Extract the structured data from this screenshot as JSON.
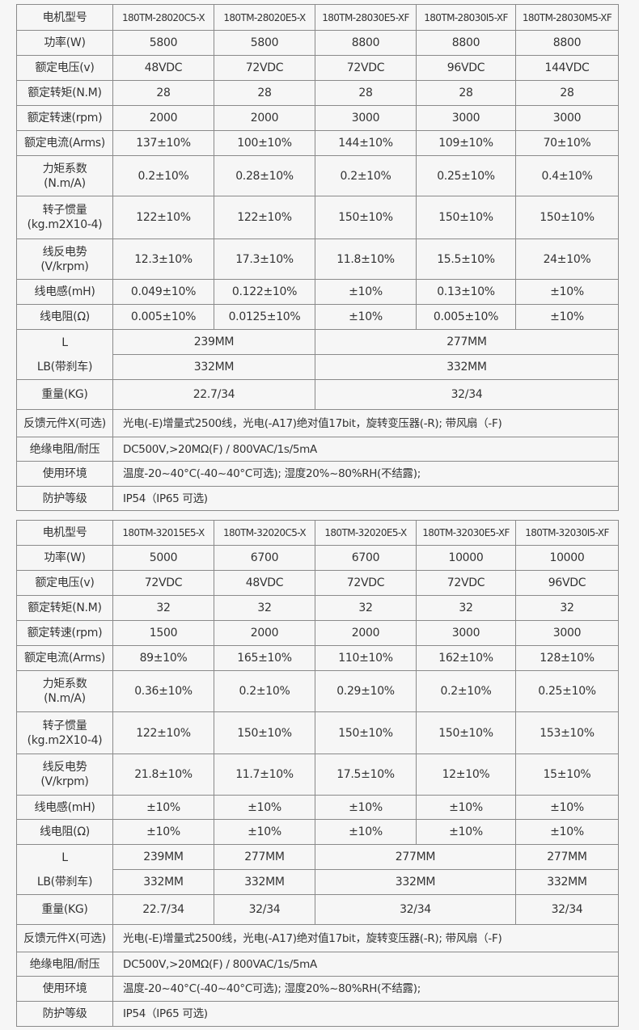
{
  "tables": [
    {
      "rows": [
        {
          "label": [
            "电机型号"
          ],
          "model": true,
          "cells": [
            {
              "text": "180TM-28020C5-X"
            },
            {
              "text": "180TM-28020E5-X"
            },
            {
              "text": "180TM-28030E5-XF"
            },
            {
              "text": "180TM-28030I5-XF"
            },
            {
              "text": "180TM-28030M5-XF"
            }
          ]
        },
        {
          "label": [
            "功率(W)"
          ],
          "cells": [
            {
              "text": "5800"
            },
            {
              "text": "5800"
            },
            {
              "text": "8800"
            },
            {
              "text": "8800"
            },
            {
              "text": "8800"
            }
          ]
        },
        {
          "label": [
            "额定电压(v)"
          ],
          "cells": [
            {
              "text": "48VDC"
            },
            {
              "text": "72VDC"
            },
            {
              "text": "72VDC"
            },
            {
              "text": "96VDC"
            },
            {
              "text": "144VDC"
            }
          ]
        },
        {
          "label": [
            "额定转矩(N.M)"
          ],
          "cells": [
            {
              "text": "28"
            },
            {
              "text": "28"
            },
            {
              "text": "28"
            },
            {
              "text": "28"
            },
            {
              "text": "28"
            }
          ]
        },
        {
          "label": [
            "额定转速(rpm)"
          ],
          "cells": [
            {
              "text": "2000"
            },
            {
              "text": "2000"
            },
            {
              "text": "3000"
            },
            {
              "text": "3000"
            },
            {
              "text": "3000"
            }
          ]
        },
        {
          "label": [
            "额定电流(Arms)"
          ],
          "cells": [
            {
              "text": "137±10%"
            },
            {
              "text": "100±10%"
            },
            {
              "text": "144±10%"
            },
            {
              "text": "109±10%"
            },
            {
              "text": "70±10%"
            }
          ]
        },
        {
          "label": [
            "力矩系数",
            "(N.m/A)"
          ],
          "cells": [
            {
              "text": "0.2±10%"
            },
            {
              "text": "0.28±10%"
            },
            {
              "text": "0.2±10%"
            },
            {
              "text": "0.25±10%"
            },
            {
              "text": "0.4±10%"
            }
          ]
        },
        {
          "label": [
            "转子惯量",
            "(kg.m2X10-4)"
          ],
          "cells": [
            {
              "text": "122±10%"
            },
            {
              "text": "122±10%"
            },
            {
              "text": "150±10%"
            },
            {
              "text": "150±10%"
            },
            {
              "text": "150±10%"
            }
          ]
        },
        {
          "label": [
            "线反电势",
            "(V/krpm)"
          ],
          "cells": [
            {
              "text": "12.3±10%"
            },
            {
              "text": "17.3±10%"
            },
            {
              "text": "11.8±10%"
            },
            {
              "text": "15.5±10%"
            },
            {
              "text": "24±10%"
            }
          ]
        },
        {
          "label": [
            "线电感(mH)"
          ],
          "cells": [
            {
              "text": "0.049±10%"
            },
            {
              "text": "0.122±10%"
            },
            {
              "text": "±10%"
            },
            {
              "text": "0.13±10%"
            },
            {
              "text": "±10%"
            }
          ]
        },
        {
          "label": [
            "线电阻(Ω)"
          ],
          "cells": [
            {
              "text": "0.005±10%"
            },
            {
              "text": "0.0125±10%"
            },
            {
              "text": "±10%"
            },
            {
              "text": "0.005±10%"
            },
            {
              "text": "±10%"
            }
          ]
        },
        {
          "label": [
            "L",
            "LB(带刹车)"
          ],
          "label_rowspan": 2,
          "cells": [
            {
              "text": "239MM",
              "span": 2
            },
            {
              "text": "277MM",
              "span": 3
            }
          ]
        },
        {
          "label": null,
          "cells": [
            {
              "text": "332MM",
              "span": 2
            },
            {
              "text": "332MM",
              "span": 3
            }
          ]
        },
        {
          "label": [
            "重量(KG)"
          ],
          "cells": [
            {
              "text": "22.7/34",
              "span": 2
            },
            {
              "text": "32/34",
              "span": 3
            }
          ]
        },
        {
          "label": [
            "反馈元件X(可选)"
          ],
          "cells": [
            {
              "text": "光电(-E)增量式2500线，光电(-A17)绝对值17bit，旋转变压器(-R); 带风扇（-F)",
              "span": 5,
              "long": true
            }
          ]
        },
        {
          "label": [
            "绝缘电阻/耐压"
          ],
          "cells": [
            {
              "text": "DC500V,>20MΩ(F) / 800VAC/1s/5mA",
              "span": 5,
              "long": true
            }
          ]
        },
        {
          "label": [
            "使用环境"
          ],
          "cells": [
            {
              "text": "温度-20~40°C(-40~40°C可选); 湿度20%~80%RH(不结露);",
              "span": 5,
              "long": true
            }
          ]
        },
        {
          "label": [
            "防护等级"
          ],
          "cells": [
            {
              "text": "IP54（IP65 可选)",
              "span": 5,
              "long": true
            }
          ]
        }
      ]
    },
    {
      "rows": [
        {
          "label": [
            "电机型号"
          ],
          "model": true,
          "cells": [
            {
              "text": "180TM-32015E5-X"
            },
            {
              "text": "180TM-32020C5-X"
            },
            {
              "text": "180TM-32020E5-X"
            },
            {
              "text": "180TM-32030E5-XF"
            },
            {
              "text": "180TM-32030I5-XF"
            }
          ]
        },
        {
          "label": [
            "功率(W)"
          ],
          "cells": [
            {
              "text": "5000"
            },
            {
              "text": "6700"
            },
            {
              "text": "6700"
            },
            {
              "text": "10000"
            },
            {
              "text": "10000"
            }
          ]
        },
        {
          "label": [
            "额定电压(v)"
          ],
          "cells": [
            {
              "text": "72VDC"
            },
            {
              "text": "48VDC"
            },
            {
              "text": "72VDC"
            },
            {
              "text": "72VDC"
            },
            {
              "text": "96VDC"
            }
          ]
        },
        {
          "label": [
            "额定转矩(N.M)"
          ],
          "cells": [
            {
              "text": "32"
            },
            {
              "text": "32"
            },
            {
              "text": "32"
            },
            {
              "text": "32"
            },
            {
              "text": "32"
            }
          ]
        },
        {
          "label": [
            "额定转速(rpm)"
          ],
          "cells": [
            {
              "text": "1500"
            },
            {
              "text": "2000"
            },
            {
              "text": "2000"
            },
            {
              "text": "3000"
            },
            {
              "text": "3000"
            }
          ]
        },
        {
          "label": [
            "额定电流(Arms)"
          ],
          "cells": [
            {
              "text": "89±10%"
            },
            {
              "text": "165±10%"
            },
            {
              "text": "110±10%"
            },
            {
              "text": "162±10%"
            },
            {
              "text": "128±10%"
            }
          ]
        },
        {
          "label": [
            "力矩系数",
            "(N.m/A)"
          ],
          "cells": [
            {
              "text": "0.36±10%"
            },
            {
              "text": "0.2±10%"
            },
            {
              "text": "0.29±10%"
            },
            {
              "text": "0.2±10%"
            },
            {
              "text": "0.25±10%"
            }
          ]
        },
        {
          "label": [
            "转子惯量",
            "(kg.m2X10-4)"
          ],
          "cells": [
            {
              "text": "122±10%"
            },
            {
              "text": "150±10%"
            },
            {
              "text": "150±10%"
            },
            {
              "text": "150±10%"
            },
            {
              "text": "153±10%"
            }
          ]
        },
        {
          "label": [
            "线反电势",
            "(V/krpm)"
          ],
          "cells": [
            {
              "text": "21.8±10%"
            },
            {
              "text": "11.7±10%"
            },
            {
              "text": "17.5±10%"
            },
            {
              "text": "12±10%"
            },
            {
              "text": "15±10%"
            }
          ]
        },
        {
          "label": [
            "线电感(mH)"
          ],
          "cells": [
            {
              "text": "±10%"
            },
            {
              "text": "±10%"
            },
            {
              "text": "±10%"
            },
            {
              "text": "±10%"
            },
            {
              "text": "±10%"
            }
          ]
        },
        {
          "label": [
            "线电阻(Ω)"
          ],
          "cells": [
            {
              "text": "±10%"
            },
            {
              "text": "±10%"
            },
            {
              "text": "±10%"
            },
            {
              "text": "±10%"
            },
            {
              "text": "±10%"
            }
          ]
        },
        {
          "label": [
            "L",
            "LB(带刹车)"
          ],
          "label_rowspan": 2,
          "cells": [
            {
              "text": "239MM"
            },
            {
              "text": "277MM"
            },
            {
              "text": "277MM",
              "span": 2
            },
            {
              "text": "277MM"
            }
          ]
        },
        {
          "label": null,
          "cells": [
            {
              "text": "332MM"
            },
            {
              "text": "332MM"
            },
            {
              "text": "332MM",
              "span": 2
            },
            {
              "text": "332MM"
            }
          ]
        },
        {
          "label": [
            "重量(KG)"
          ],
          "cells": [
            {
              "text": "22.7/34"
            },
            {
              "text": "32/34"
            },
            {
              "text": "32/34",
              "span": 2
            },
            {
              "text": "32/34"
            }
          ]
        },
        {
          "label": [
            "反馈元件X(可选)"
          ],
          "cells": [
            {
              "text": "光电(-E)增量式2500线，光电(-A17)绝对值17bit，旋转变压器(-R); 带风扇（-F)",
              "span": 5,
              "long": true
            }
          ]
        },
        {
          "label": [
            "绝缘电阻/耐压"
          ],
          "cells": [
            {
              "text": "DC500V,>20MΩ(F) / 800VAC/1s/5mA",
              "span": 5,
              "long": true
            }
          ]
        },
        {
          "label": [
            "使用环境"
          ],
          "cells": [
            {
              "text": "温度-20~40°C(-40~40°C可选); 湿度20%~80%RH(不结露);",
              "span": 5,
              "long": true
            }
          ]
        },
        {
          "label": [
            "防护等级"
          ],
          "cells": [
            {
              "text": "IP54（IP65 可选)",
              "span": 5,
              "long": true
            }
          ]
        }
      ]
    }
  ]
}
